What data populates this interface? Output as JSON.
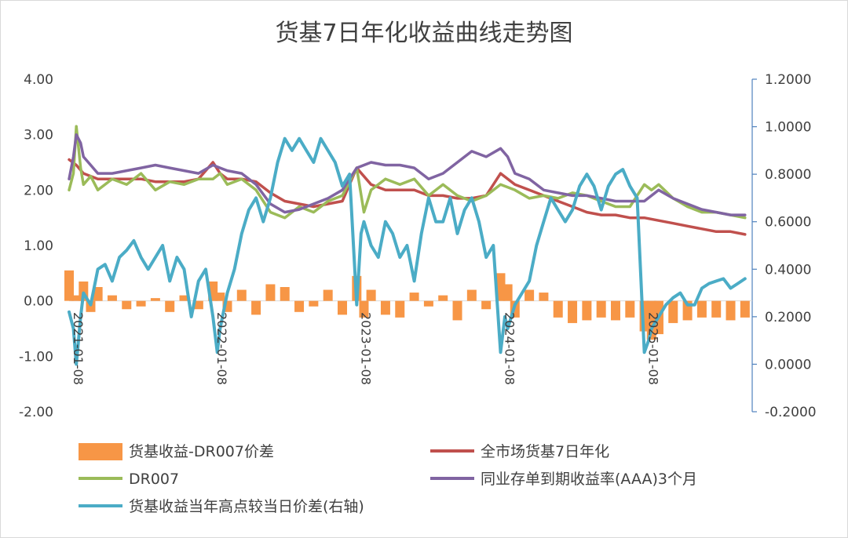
{
  "chart_data": {
    "type": "line",
    "title": "货基7日年化收益曲线走势图",
    "x_tick_labels": [
      "2021-01-08",
      "2022-01-08",
      "2023-01-08",
      "2024-01-08",
      "2025-01-08"
    ],
    "left_axis": {
      "ylim": [
        -2.0,
        4.0
      ],
      "ticks": [
        "-2.00",
        "-1.00",
        "0.00",
        "1.00",
        "2.00",
        "3.00",
        "4.00"
      ]
    },
    "right_axis": {
      "ylim": [
        -0.2,
        1.2
      ],
      "ticks": [
        "-0.2000",
        "0.0000",
        "0.2000",
        "0.4000",
        "0.6000",
        "0.8000",
        "1.0000",
        "1.2000"
      ]
    },
    "x_range": [
      2021.0,
      2025.75
    ],
    "grid": false,
    "legend_position": "bottom",
    "colors": {
      "spread": "#F79646",
      "mmf": "#C0504D",
      "dr007": "#9BBB59",
      "cd": "#8064A2",
      "highpoint": "#4BACC6",
      "right_axis": "#4F81BD"
    },
    "series": [
      {
        "key": "spread",
        "name": "货基收益-DR007价差",
        "kind": "bar",
        "axis": "left",
        "x": [
          2021.0,
          2021.05,
          2021.1,
          2021.15,
          2021.2,
          2021.3,
          2021.4,
          2021.5,
          2021.6,
          2021.7,
          2021.8,
          2021.9,
          2022.0,
          2022.05,
          2022.1,
          2022.2,
          2022.3,
          2022.4,
          2022.5,
          2022.6,
          2022.7,
          2022.8,
          2022.9,
          2023.0,
          2023.05,
          2023.1,
          2023.2,
          2023.3,
          2023.4,
          2023.5,
          2023.6,
          2023.7,
          2023.8,
          2023.9,
          2024.0,
          2024.05,
          2024.1,
          2024.2,
          2024.3,
          2024.4,
          2024.5,
          2024.6,
          2024.7,
          2024.8,
          2024.9,
          2025.0,
          2025.05,
          2025.1,
          2025.2,
          2025.3,
          2025.4,
          2025.5,
          2025.6,
          2025.7
        ],
        "values": [
          0.55,
          0.1,
          0.35,
          -0.2,
          0.25,
          0.1,
          -0.15,
          -0.1,
          0.05,
          -0.2,
          0.1,
          -0.15,
          0.35,
          0.15,
          -0.2,
          0.2,
          -0.25,
          0.3,
          0.25,
          -0.2,
          -0.1,
          0.2,
          -0.25,
          0.45,
          -0.3,
          0.2,
          -0.25,
          -0.3,
          0.15,
          -0.1,
          0.1,
          -0.35,
          0.2,
          -0.15,
          0.5,
          0.3,
          -0.3,
          0.2,
          0.15,
          -0.3,
          -0.4,
          -0.35,
          -0.3,
          -0.35,
          -0.3,
          -0.55,
          -0.7,
          -0.6,
          -0.4,
          -0.35,
          -0.3,
          -0.3,
          -0.35,
          -0.3
        ]
      },
      {
        "key": "mmf",
        "name": "全市场货基7日年化",
        "kind": "line",
        "axis": "left",
        "x": [
          2021.0,
          2021.05,
          2021.1,
          2021.2,
          2021.3,
          2021.4,
          2021.5,
          2021.6,
          2021.7,
          2021.8,
          2021.9,
          2022.0,
          2022.05,
          2022.1,
          2022.2,
          2022.3,
          2022.4,
          2022.5,
          2022.6,
          2022.7,
          2022.8,
          2022.9,
          2023.0,
          2023.1,
          2023.2,
          2023.3,
          2023.4,
          2023.5,
          2023.6,
          2023.7,
          2023.8,
          2023.9,
          2024.0,
          2024.1,
          2024.2,
          2024.3,
          2024.4,
          2024.5,
          2024.6,
          2024.7,
          2024.8,
          2024.9,
          2025.0,
          2025.1,
          2025.2,
          2025.3,
          2025.4,
          2025.5,
          2025.6,
          2025.7
        ],
        "values": [
          2.55,
          2.45,
          2.3,
          2.2,
          2.2,
          2.2,
          2.2,
          2.15,
          2.15,
          2.15,
          2.2,
          2.5,
          2.3,
          2.2,
          2.2,
          2.15,
          1.95,
          1.8,
          1.75,
          1.7,
          1.75,
          1.8,
          2.4,
          2.1,
          2.0,
          2.0,
          2.0,
          1.9,
          1.9,
          1.85,
          1.85,
          1.9,
          2.3,
          2.1,
          2.0,
          1.9,
          1.8,
          1.7,
          1.6,
          1.55,
          1.55,
          1.5,
          1.5,
          1.45,
          1.4,
          1.35,
          1.3,
          1.25,
          1.25,
          1.2
        ]
      },
      {
        "key": "dr007",
        "name": "DR007",
        "kind": "line",
        "axis": "left",
        "x": [
          2021.0,
          2021.03,
          2021.05,
          2021.08,
          2021.1,
          2021.15,
          2021.2,
          2021.3,
          2021.4,
          2021.5,
          2021.6,
          2021.7,
          2021.8,
          2021.9,
          2022.0,
          2022.05,
          2022.1,
          2022.2,
          2022.3,
          2022.4,
          2022.5,
          2022.6,
          2022.7,
          2022.8,
          2022.9,
          2023.0,
          2023.05,
          2023.1,
          2023.2,
          2023.3,
          2023.4,
          2023.5,
          2023.6,
          2023.7,
          2023.8,
          2023.9,
          2024.0,
          2024.1,
          2024.2,
          2024.3,
          2024.4,
          2024.5,
          2024.6,
          2024.7,
          2024.8,
          2024.9,
          2025.0,
          2025.05,
          2025.1,
          2025.2,
          2025.3,
          2025.4,
          2025.5,
          2025.6,
          2025.7
        ],
        "values": [
          2.0,
          2.3,
          3.15,
          2.4,
          2.1,
          2.25,
          2.0,
          2.2,
          2.1,
          2.3,
          2.0,
          2.15,
          2.1,
          2.2,
          2.2,
          2.3,
          2.1,
          2.2,
          2.0,
          1.6,
          1.5,
          1.7,
          1.6,
          1.8,
          1.9,
          2.4,
          1.6,
          2.0,
          2.2,
          2.1,
          2.2,
          1.9,
          2.1,
          1.9,
          1.8,
          1.9,
          2.1,
          2.0,
          1.85,
          1.9,
          1.85,
          1.95,
          1.9,
          1.8,
          1.7,
          1.7,
          2.1,
          2.0,
          2.1,
          1.85,
          1.7,
          1.6,
          1.6,
          1.55,
          1.5
        ]
      },
      {
        "key": "cd",
        "name": "同业存单到期收益率(AAA)3个月",
        "kind": "line",
        "axis": "left",
        "x": [
          2021.0,
          2021.03,
          2021.05,
          2021.08,
          2021.1,
          2021.15,
          2021.2,
          2021.3,
          2021.4,
          2021.5,
          2021.6,
          2021.7,
          2021.8,
          2021.9,
          2022.0,
          2022.05,
          2022.1,
          2022.2,
          2022.3,
          2022.4,
          2022.5,
          2022.6,
          2022.7,
          2022.8,
          2022.9,
          2023.0,
          2023.1,
          2023.2,
          2023.3,
          2023.4,
          2023.5,
          2023.6,
          2023.7,
          2023.8,
          2023.9,
          2024.0,
          2024.05,
          2024.1,
          2024.2,
          2024.3,
          2024.4,
          2024.5,
          2024.6,
          2024.7,
          2024.8,
          2024.9,
          2025.0,
          2025.1,
          2025.2,
          2025.3,
          2025.4,
          2025.5,
          2025.6,
          2025.7
        ],
        "values": [
          2.2,
          2.6,
          3.0,
          2.85,
          2.6,
          2.45,
          2.3,
          2.3,
          2.35,
          2.4,
          2.45,
          2.4,
          2.35,
          2.3,
          2.45,
          2.4,
          2.35,
          2.3,
          2.1,
          1.75,
          1.6,
          1.65,
          1.75,
          1.85,
          2.0,
          2.4,
          2.5,
          2.45,
          2.45,
          2.4,
          2.2,
          2.3,
          2.5,
          2.7,
          2.6,
          2.75,
          2.6,
          2.3,
          2.2,
          2.0,
          1.95,
          1.9,
          1.9,
          1.85,
          1.8,
          1.8,
          1.8,
          2.0,
          1.85,
          1.75,
          1.65,
          1.6,
          1.55,
          1.55
        ]
      },
      {
        "key": "highpoint",
        "name": "货基收益当年高点较当日价差(右轴)",
        "kind": "line",
        "axis": "right",
        "x": [
          2021.0,
          2021.03,
          2021.05,
          2021.08,
          2021.1,
          2021.15,
          2021.2,
          2021.25,
          2021.3,
          2021.35,
          2021.4,
          2021.45,
          2021.5,
          2021.55,
          2021.6,
          2021.65,
          2021.7,
          2021.75,
          2021.8,
          2021.85,
          2021.9,
          2021.95,
          2022.0,
          2022.03,
          2022.05,
          2022.1,
          2022.15,
          2022.2,
          2022.25,
          2022.3,
          2022.35,
          2022.4,
          2022.45,
          2022.5,
          2022.55,
          2022.6,
          2022.65,
          2022.7,
          2022.75,
          2022.8,
          2022.85,
          2022.9,
          2022.95,
          2023.0,
          2023.03,
          2023.05,
          2023.1,
          2023.15,
          2023.2,
          2023.25,
          2023.3,
          2023.35,
          2023.4,
          2023.45,
          2023.5,
          2023.55,
          2023.6,
          2023.65,
          2023.7,
          2023.75,
          2023.8,
          2023.85,
          2023.9,
          2023.95,
          2024.0,
          2024.03,
          2024.05,
          2024.1,
          2024.15,
          2024.2,
          2024.25,
          2024.3,
          2024.35,
          2024.4,
          2024.45,
          2024.5,
          2024.55,
          2024.6,
          2024.65,
          2024.7,
          2024.75,
          2024.8,
          2024.85,
          2024.9,
          2024.95,
          2025.0,
          2025.03,
          2025.05,
          2025.1,
          2025.15,
          2025.2,
          2025.25,
          2025.3,
          2025.35,
          2025.4,
          2025.45,
          2025.5,
          2025.55,
          2025.6,
          2025.65,
          2025.7
        ],
        "values": [
          0.22,
          0.15,
          0.0,
          0.2,
          0.3,
          0.25,
          0.4,
          0.42,
          0.35,
          0.45,
          0.48,
          0.52,
          0.45,
          0.4,
          0.45,
          0.5,
          0.35,
          0.45,
          0.4,
          0.2,
          0.35,
          0.4,
          0.2,
          0.05,
          0.15,
          0.3,
          0.4,
          0.55,
          0.65,
          0.7,
          0.6,
          0.7,
          0.85,
          0.95,
          0.9,
          0.95,
          0.9,
          0.85,
          0.95,
          0.9,
          0.85,
          0.75,
          0.8,
          0.25,
          0.55,
          0.6,
          0.5,
          0.45,
          0.6,
          0.55,
          0.45,
          0.5,
          0.35,
          0.55,
          0.7,
          0.6,
          0.6,
          0.7,
          0.55,
          0.65,
          0.7,
          0.6,
          0.45,
          0.5,
          0.05,
          0.2,
          0.15,
          0.25,
          0.3,
          0.35,
          0.5,
          0.6,
          0.7,
          0.65,
          0.6,
          0.65,
          0.75,
          0.8,
          0.75,
          0.65,
          0.75,
          0.8,
          0.82,
          0.75,
          0.7,
          0.05,
          0.1,
          0.15,
          0.2,
          0.25,
          0.28,
          0.3,
          0.25,
          0.25,
          0.32,
          0.34,
          0.35,
          0.36,
          0.32,
          0.34,
          0.36
        ]
      }
    ]
  }
}
